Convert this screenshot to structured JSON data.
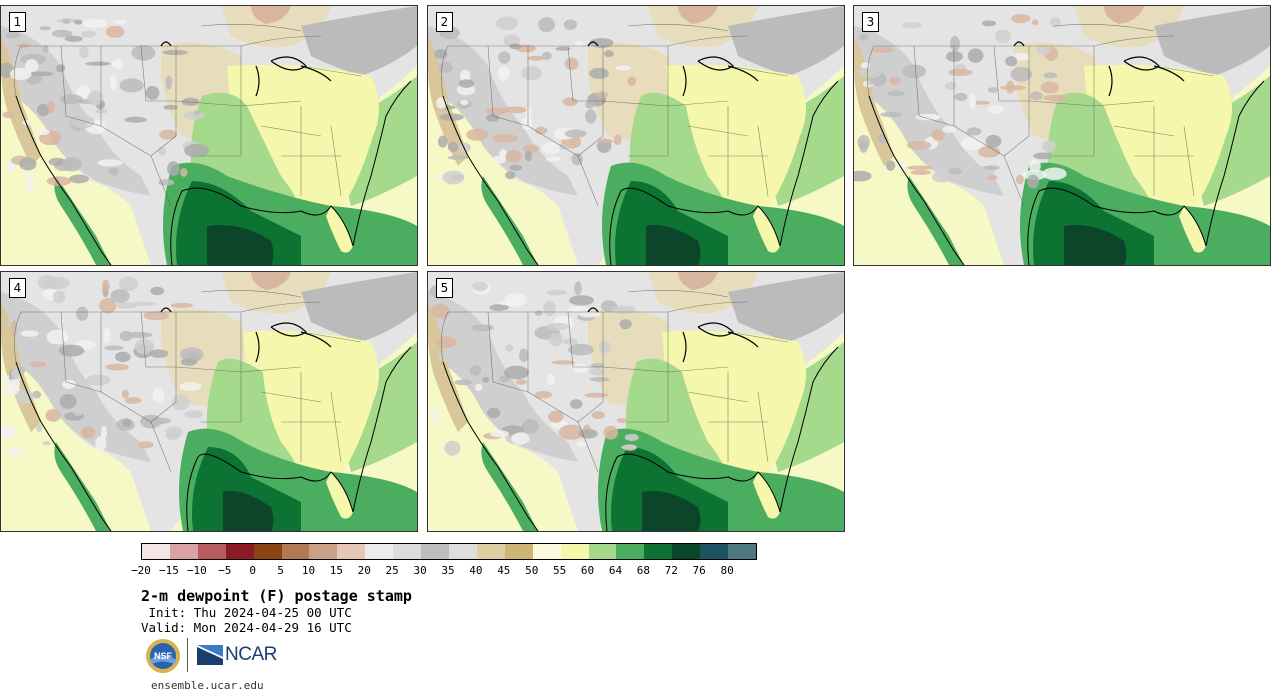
{
  "panels": [
    {
      "label": "1"
    },
    {
      "label": "2"
    },
    {
      "label": "3"
    },
    {
      "label": "4"
    },
    {
      "label": "5"
    }
  ],
  "colorbar": {
    "colors": [
      "#f5e6e6",
      "#d9a3a5",
      "#b95c61",
      "#8c1c24",
      "#8a4514",
      "#b07a55",
      "#c9a186",
      "#e5c9b6",
      "#ececec",
      "#dcdcdc",
      "#bdbdbd",
      "#dedede",
      "#dfcfa4",
      "#cfb478",
      "#fafadc",
      "#f5f7ac",
      "#a5da8d",
      "#4aad5f",
      "#0c7333",
      "#0b452a",
      "#1f5261",
      "#4e7a7f"
    ],
    "ticks": [
      "−20",
      "−15",
      "−10",
      "−5",
      "0",
      "5",
      "10",
      "15",
      "20",
      "25",
      "30",
      "35",
      "40",
      "45",
      "50",
      "55",
      "60",
      "64",
      "68",
      "72",
      "76",
      "80"
    ]
  },
  "title": "2-m dewpoint (F) postage stamp",
  "init": " Init: Thu 2024-04-25 00 UTC",
  "valid": "Valid: Mon 2024-04-29 16 UTC",
  "logos": {
    "nsf": "NSF",
    "ncar": "NCAR"
  },
  "site": "ensemble.ucar.edu"
}
